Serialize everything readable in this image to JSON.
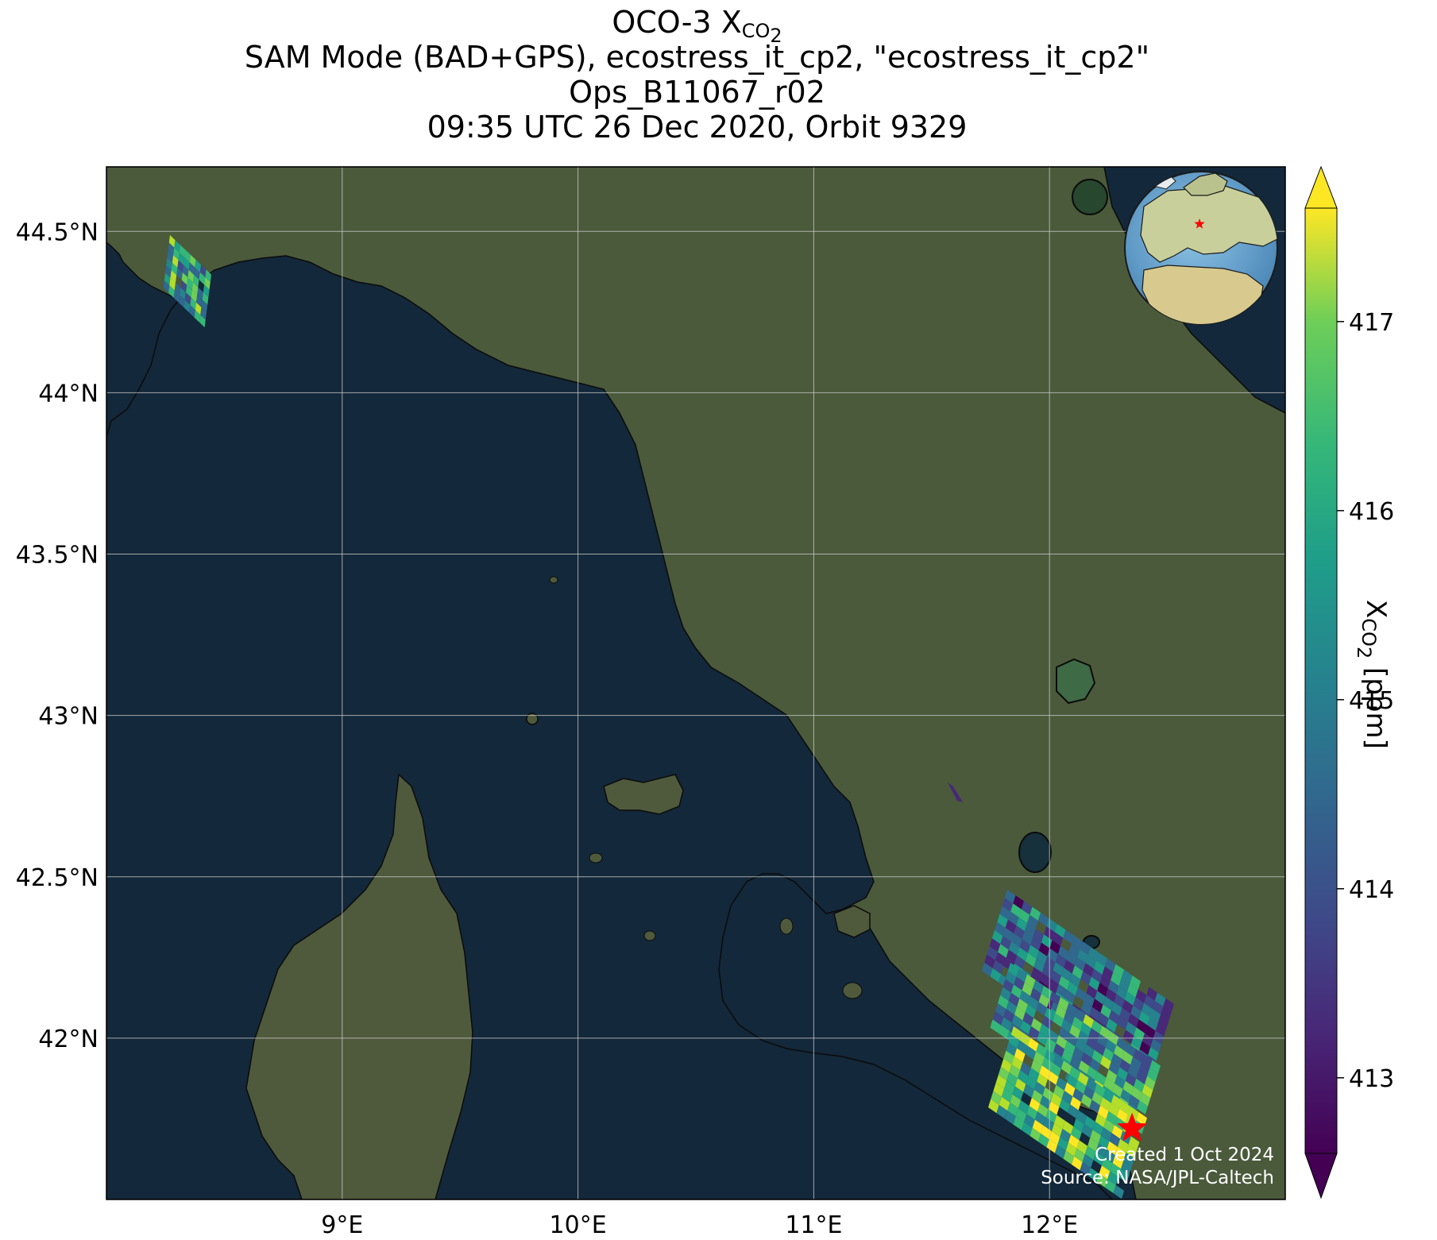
{
  "title": {
    "line1_prefix": "OCO-3 X",
    "line1_sub": "CO",
    "line1_sub2": "2",
    "line2": "SAM Mode (BAD+GPS), ecostress_it_cp2, \"ecostress_it_cp2\"",
    "line3": "Ops_B11067_r02",
    "line4": "09:35 UTC 26 Dec 2020, Orbit 9329"
  },
  "map": {
    "lon_range": [
      8.0,
      13.0
    ],
    "lat_range": [
      41.5,
      44.7
    ],
    "lat_ticks": [
      {
        "value": 44.5,
        "label": "44.5°N"
      },
      {
        "value": 44.0,
        "label": "44°N"
      },
      {
        "value": 43.5,
        "label": "43.5°N"
      },
      {
        "value": 43.0,
        "label": "43°N"
      },
      {
        "value": 42.5,
        "label": "42.5°N"
      },
      {
        "value": 42.0,
        "label": "42°N"
      }
    ],
    "lon_ticks": [
      {
        "value": 9,
        "label": "9°E"
      },
      {
        "value": 10,
        "label": "10°E"
      },
      {
        "value": 11,
        "label": "11°E"
      },
      {
        "value": 12,
        "label": "12°E"
      }
    ],
    "grid": true,
    "target_marker": {
      "lon": 12.35,
      "lat": 41.72,
      "color": "#ff0000",
      "icon": "star-icon"
    },
    "inset": {
      "type": "globe",
      "marker_color": "#ff0000",
      "icon": "globe-icon"
    },
    "colors": {
      "sea": "#13283a",
      "land": "#46553a",
      "grid": "#c8c8c8"
    }
  },
  "colorbar": {
    "title_prefix": "X",
    "title_sub": "CO",
    "title_sub2": "2",
    "title_suffix": " [ppm]",
    "min": 412.6,
    "max": 417.6,
    "ticks": [
      {
        "value": 413,
        "label": "413"
      },
      {
        "value": 414,
        "label": "414"
      },
      {
        "value": 415,
        "label": "415"
      },
      {
        "value": 416,
        "label": "416"
      },
      {
        "value": 417,
        "label": "417"
      }
    ],
    "colormap": "viridis",
    "extend": "both"
  },
  "credit": {
    "line1": "Created 1 Oct 2024",
    "line2": "Source: NASA/JPL-Caltech"
  }
}
